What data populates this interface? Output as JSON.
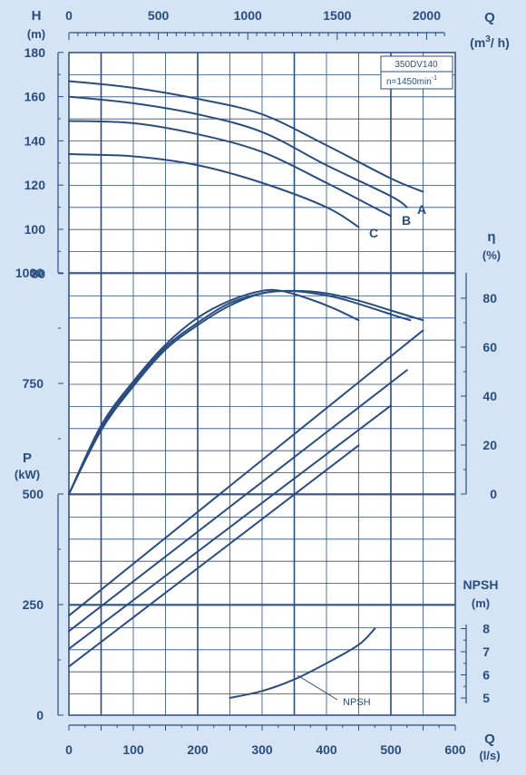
{
  "chart_data": {
    "type": "line",
    "model_box": {
      "model": "350DV140",
      "speed": "n=1450min",
      "speed_exp": "-1"
    },
    "axes": {
      "x_bottom": {
        "label": "Q",
        "unit": "(l/s)",
        "range": [
          0,
          600
        ],
        "ticks": [
          0,
          100,
          200,
          300,
          400,
          500,
          600
        ]
      },
      "x_top": {
        "label": "Q",
        "unit_main": "(m",
        "unit_sup": "3",
        "unit_end": "/ h)",
        "range": [
          0,
          2100
        ],
        "ticks": [
          0,
          500,
          1000,
          1500,
          2000
        ]
      },
      "head": {
        "label": "H",
        "unit": "(m)",
        "range": [
          80,
          180
        ],
        "ticks": [
          80,
          100,
          120,
          140,
          160,
          180
        ]
      },
      "efficiency": {
        "label": "η",
        "unit": "(%)",
        "range": [
          0,
          85
        ],
        "ticks": [
          0,
          20,
          40,
          60,
          80
        ]
      },
      "power": {
        "label": "P",
        "unit": "(kW)",
        "range": [
          0,
          1000
        ],
        "ticks": [
          0,
          250,
          500,
          750,
          1000
        ]
      },
      "npsh": {
        "label": "NPSH",
        "unit": "(m)",
        "range": [
          5,
          8
        ],
        "ticks": [
          5,
          6,
          7,
          8
        ]
      }
    },
    "head_curves": [
      {
        "name": "A",
        "points": [
          [
            0,
            167
          ],
          [
            100,
            164
          ],
          [
            200,
            159
          ],
          [
            300,
            152
          ],
          [
            400,
            138
          ],
          [
            500,
            123
          ],
          [
            550,
            117
          ]
        ]
      },
      {
        "name": "B",
        "points": [
          [
            0,
            160
          ],
          [
            100,
            157
          ],
          [
            200,
            152
          ],
          [
            300,
            144
          ],
          [
            400,
            129
          ],
          [
            500,
            115
          ],
          [
            525,
            110
          ]
        ]
      },
      {
        "name": "C",
        "points": [
          [
            0,
            149
          ],
          [
            100,
            148
          ],
          [
            200,
            143
          ],
          [
            300,
            135
          ],
          [
            400,
            121
          ],
          [
            460,
            112
          ],
          [
            500,
            106
          ]
        ]
      },
      {
        "name": "",
        "points": [
          [
            0,
            134
          ],
          [
            100,
            133
          ],
          [
            200,
            129
          ],
          [
            300,
            121
          ],
          [
            400,
            110
          ],
          [
            450,
            101
          ]
        ]
      }
    ],
    "efficiency_curves": [
      {
        "points": [
          [
            0,
            0
          ],
          [
            50,
            27
          ],
          [
            100,
            45
          ],
          [
            150,
            60
          ],
          [
            200,
            70
          ],
          [
            250,
            78
          ],
          [
            300,
            82
          ],
          [
            340,
            83
          ],
          [
            380,
            82
          ],
          [
            420,
            80
          ],
          [
            470,
            76
          ],
          [
            505,
            73
          ],
          [
            530,
            71
          ]
        ]
      },
      {
        "points": [
          [
            0,
            0
          ],
          [
            50,
            26
          ],
          [
            100,
            44
          ],
          [
            150,
            59
          ],
          [
            200,
            69
          ],
          [
            250,
            77
          ],
          [
            300,
            82
          ],
          [
            350,
            83
          ],
          [
            400,
            82
          ],
          [
            450,
            79
          ],
          [
            500,
            75
          ],
          [
            550,
            71
          ]
        ]
      },
      {
        "points": [
          [
            0,
            0
          ],
          [
            50,
            28
          ],
          [
            100,
            46
          ],
          [
            150,
            61
          ],
          [
            200,
            72
          ],
          [
            250,
            79
          ],
          [
            300,
            83
          ],
          [
            330,
            83
          ],
          [
            370,
            80
          ],
          [
            410,
            76
          ],
          [
            450,
            71
          ]
        ]
      }
    ],
    "power_curves": [
      {
        "points": [
          [
            0,
            225
          ],
          [
            550,
            870
          ]
        ]
      },
      {
        "points": [
          [
            0,
            190
          ],
          [
            525,
            780
          ]
        ]
      },
      {
        "points": [
          [
            0,
            150
          ],
          [
            500,
            700
          ]
        ]
      },
      {
        "points": [
          [
            0,
            110
          ],
          [
            450,
            610
          ]
        ]
      }
    ],
    "npsh_curve": {
      "name": "NPSH",
      "points": [
        [
          250,
          5.0
        ],
        [
          300,
          5.3
        ],
        [
          350,
          5.8
        ],
        [
          400,
          6.5
        ],
        [
          450,
          7.3
        ],
        [
          475,
          8.0
        ]
      ]
    },
    "curve_labels": [
      "A",
      "B",
      "C"
    ],
    "grid": true
  }
}
